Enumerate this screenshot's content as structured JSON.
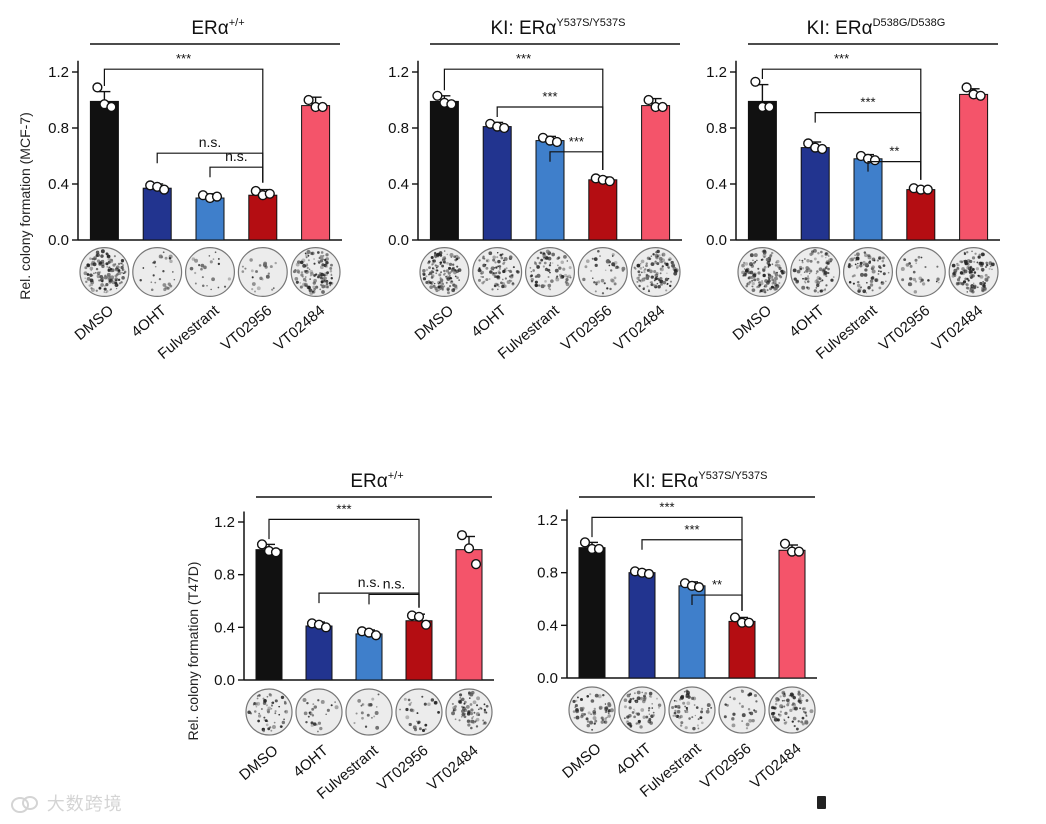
{
  "colors": {
    "DMSO": "#111111",
    "4OHT": "#22348f",
    "Fulvestrant": "#3f7fcb",
    "VT02956": "#b40d12",
    "VT02484": "#f4546a"
  },
  "watermark": {
    "text": "大数跨境",
    "icon": "chat-bubbles-icon"
  },
  "chart_data": [
    {
      "id": "p1",
      "type": "bar",
      "title": "ERα",
      "title_sup": "+/+",
      "ylabel": "Rel. colony formation (MCF-7)",
      "categories": [
        "DMSO",
        "4OHT",
        "Fulvestrant",
        "VT02956",
        "VT02484"
      ],
      "values": [
        0.99,
        0.37,
        0.3,
        0.32,
        0.96
      ],
      "errors": [
        0.07,
        0.03,
        0.03,
        0.04,
        0.06
      ],
      "points": [
        [
          1.09,
          0.97,
          0.95
        ],
        [
          0.39,
          0.38,
          0.36
        ],
        [
          0.32,
          0.3,
          0.31
        ],
        [
          0.35,
          0.32,
          0.33
        ],
        [
          1.0,
          0.95,
          0.95
        ]
      ],
      "ylim": [
        0,
        1.3
      ],
      "yticks": [
        0.0,
        0.4,
        0.8,
        1.2
      ],
      "ytick_labels": [
        "0.0",
        "0.4",
        "0.8",
        "1.2"
      ],
      "colony_density": [
        0.9,
        0.15,
        0.12,
        0.12,
        0.75
      ],
      "significance": [
        {
          "from": 0,
          "to": 3,
          "label": "***"
        },
        {
          "from": 1,
          "to": 3,
          "label": "n.s."
        },
        {
          "from": 2,
          "to": 3,
          "label": "n.s."
        }
      ]
    },
    {
      "id": "p2",
      "type": "bar",
      "title": "KI: ERα",
      "title_sup": "Y537S/Y537S",
      "ylabel": "",
      "categories": [
        "DMSO",
        "4OHT",
        "Fulvestrant",
        "VT02956",
        "VT02484"
      ],
      "values": [
        0.99,
        0.81,
        0.71,
        0.43,
        0.96
      ],
      "errors": [
        0.04,
        0.03,
        0.03,
        0.02,
        0.05
      ],
      "points": [
        [
          1.03,
          0.98,
          0.97
        ],
        [
          0.83,
          0.81,
          0.8
        ],
        [
          0.73,
          0.71,
          0.7
        ],
        [
          0.44,
          0.43,
          0.42
        ],
        [
          1.0,
          0.95,
          0.95
        ]
      ],
      "ylim": [
        0,
        1.3
      ],
      "yticks": [
        0.0,
        0.4,
        0.8,
        1.2
      ],
      "ytick_labels": [
        "0.0",
        "0.4",
        "0.8",
        "1.2"
      ],
      "colony_density": [
        0.9,
        0.6,
        0.5,
        0.25,
        0.8
      ],
      "significance": [
        {
          "from": 0,
          "to": 3,
          "label": "***"
        },
        {
          "from": 1,
          "to": 3,
          "label": "***"
        },
        {
          "from": 2,
          "to": 3,
          "label": "***"
        }
      ]
    },
    {
      "id": "p3",
      "type": "bar",
      "title": "KI: ERα",
      "title_sup": "D538G/D538G",
      "ylabel": "",
      "categories": [
        "DMSO",
        "4OHT",
        "Fulvestrant",
        "VT02956",
        "VT02484"
      ],
      "values": [
        0.99,
        0.66,
        0.58,
        0.36,
        1.04
      ],
      "errors": [
        0.12,
        0.04,
        0.03,
        0.02,
        0.04
      ],
      "points": [
        [
          1.13,
          0.95,
          0.95
        ],
        [
          0.69,
          0.66,
          0.65
        ],
        [
          0.6,
          0.58,
          0.57
        ],
        [
          0.37,
          0.36,
          0.36
        ],
        [
          1.09,
          1.04,
          1.03
        ]
      ],
      "ylim": [
        0,
        1.3
      ],
      "yticks": [
        0.0,
        0.4,
        0.8,
        1.2
      ],
      "ytick_labels": [
        "0.0",
        "0.4",
        "0.8",
        "1.2"
      ],
      "colony_density": [
        0.85,
        0.55,
        0.5,
        0.15,
        0.8
      ],
      "significance": [
        {
          "from": 0,
          "to": 3,
          "label": "***"
        },
        {
          "from": 1,
          "to": 3,
          "label": "***"
        },
        {
          "from": 2,
          "to": 3,
          "label": "**"
        }
      ]
    },
    {
      "id": "p4",
      "type": "bar",
      "title": "ERα",
      "title_sup": "+/+",
      "ylabel": "Rel. colony formation (T47D)",
      "categories": [
        "DMSO",
        "4OHT",
        "Fulvestrant",
        "VT02956",
        "VT02484"
      ],
      "values": [
        0.99,
        0.41,
        0.35,
        0.45,
        0.99
      ],
      "errors": [
        0.04,
        0.03,
        0.03,
        0.05,
        0.1
      ],
      "points": [
        [
          1.03,
          0.98,
          0.97
        ],
        [
          0.43,
          0.42,
          0.4
        ],
        [
          0.37,
          0.36,
          0.34
        ],
        [
          0.49,
          0.48,
          0.42
        ],
        [
          1.1,
          1.0,
          0.88
        ]
      ],
      "ylim": [
        0,
        1.3
      ],
      "yticks": [
        0.0,
        0.4,
        0.8,
        1.2
      ],
      "ytick_labels": [
        "0.0",
        "0.4",
        "0.8",
        "1.2"
      ],
      "colony_density": [
        0.35,
        0.15,
        0.1,
        0.15,
        0.45
      ],
      "significance": [
        {
          "from": 0,
          "to": 3,
          "label": "***"
        },
        {
          "from": 1,
          "to": 3,
          "label": "n.s."
        },
        {
          "from": 2,
          "to": 3,
          "label": "n.s."
        }
      ]
    },
    {
      "id": "p5",
      "type": "bar",
      "title": "KI: ERα",
      "title_sup": "Y537S/Y537S",
      "ylabel": "",
      "categories": [
        "DMSO",
        "4OHT",
        "Fulvestrant",
        "VT02956",
        "VT02484"
      ],
      "values": [
        0.99,
        0.8,
        0.7,
        0.43,
        0.97
      ],
      "errors": [
        0.04,
        0.02,
        0.03,
        0.03,
        0.04
      ],
      "points": [
        [
          1.03,
          0.98,
          0.98
        ],
        [
          0.81,
          0.8,
          0.79
        ],
        [
          0.72,
          0.7,
          0.69
        ],
        [
          0.46,
          0.42,
          0.42
        ],
        [
          1.02,
          0.96,
          0.96
        ]
      ],
      "ylim": [
        0,
        1.3
      ],
      "yticks": [
        0.0,
        0.4,
        0.8,
        1.2
      ],
      "ytick_labels": [
        "0.0",
        "0.4",
        "0.8",
        "1.2"
      ],
      "colony_density": [
        0.4,
        0.4,
        0.35,
        0.15,
        0.5
      ],
      "significance": [
        {
          "from": 0,
          "to": 3,
          "label": "***"
        },
        {
          "from": 1,
          "to": 3,
          "label": "***"
        },
        {
          "from": 2,
          "to": 3,
          "label": "**"
        }
      ]
    }
  ]
}
